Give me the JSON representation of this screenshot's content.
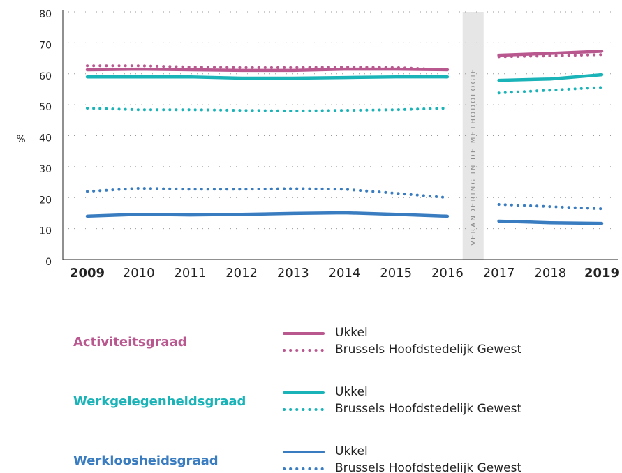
{
  "chart_data": {
    "type": "line",
    "ylabel": "%",
    "categories": [
      "2009",
      "2010",
      "2011",
      "2012",
      "2013",
      "2014",
      "2015",
      "2016",
      "2017",
      "2018",
      "2019"
    ],
    "ylim": [
      0,
      80
    ],
    "yticks": [
      0,
      10,
      20,
      30,
      40,
      50,
      60,
      70,
      80
    ],
    "grid": true,
    "annotation": {
      "text": "VERANDERING IN DE METHODOLOGIE",
      "between": [
        "2016",
        "2017"
      ]
    },
    "groups": [
      {
        "name": "Activiteitsgraad",
        "color": "#b9578f",
        "series": [
          {
            "name": "Ukkel",
            "style": "solid",
            "values": [
              61.3,
              61.5,
              61.3,
              61.1,
              61.1,
              61.5,
              61.5,
              61.3,
              66,
              66.6,
              67.3
            ]
          },
          {
            "name": "Brussels Hoofdstedelijk Gewest",
            "style": "dotted",
            "values": [
              62.6,
              62.6,
              62.2,
              62,
              62,
              62.2,
              62,
              61.3,
              65.5,
              65.8,
              66.2
            ]
          }
        ]
      },
      {
        "name": "Werkgelegenheidsgraad",
        "color": "#1ab3b8",
        "series": [
          {
            "name": "Ukkel",
            "style": "solid",
            "values": [
              59,
              59,
              59,
              58.6,
              58.6,
              58.8,
              59,
              59,
              57.9,
              58.3,
              59.7
            ]
          },
          {
            "name": "Brussels Hoofdstedelijk Gewest",
            "style": "dotted",
            "values": [
              48.9,
              48.4,
              48.4,
              48.2,
              48,
              48.2,
              48.4,
              48.9,
              53.8,
              54.7,
              55.6
            ]
          }
        ]
      },
      {
        "name": "Werkloosheidsgraad",
        "color": "#3a7cc0",
        "series": [
          {
            "name": "Ukkel",
            "style": "solid",
            "values": [
              14,
              14.6,
              14.4,
              14.6,
              14.9,
              15.1,
              14.6,
              14,
              12.4,
              11.9,
              11.7
            ]
          },
          {
            "name": "Brussels Hoofdstedelijk Gewest",
            "style": "dotted",
            "values": [
              22,
              23,
              22.7,
              22.7,
              22.9,
              22.7,
              21.4,
              20,
              17.8,
              17.1,
              16.4
            ]
          }
        ]
      }
    ]
  }
}
